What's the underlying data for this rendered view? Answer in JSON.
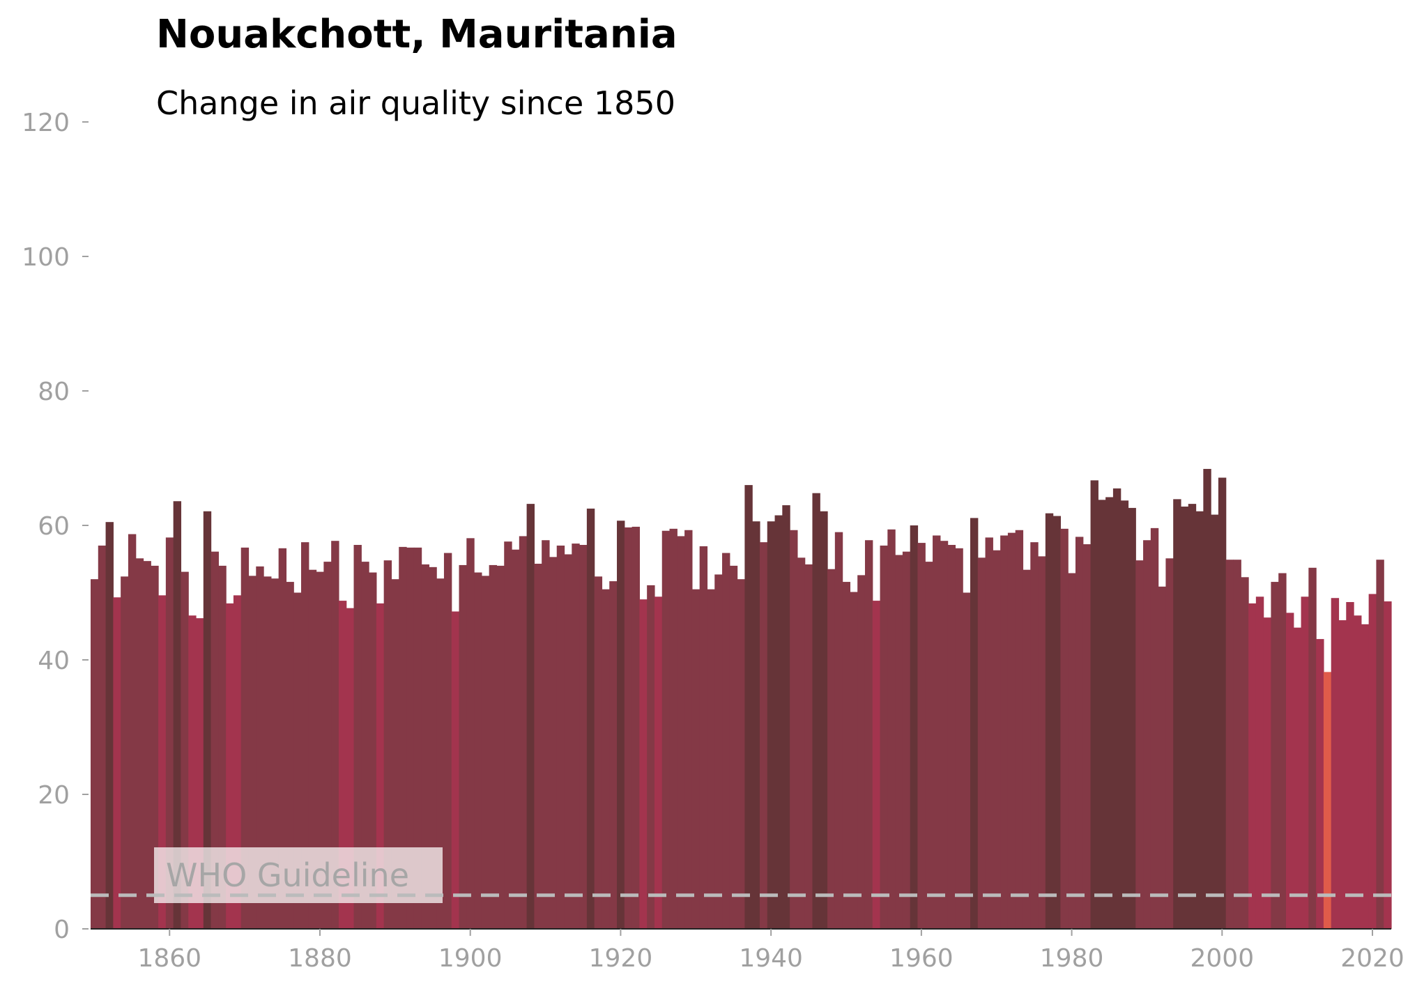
{
  "chart_data": {
    "type": "bar",
    "title": "Nouakchott, Mauritania",
    "subtitle": "Change in air quality since 1850",
    "xlabel": "",
    "ylabel": "",
    "x_start": 1850,
    "x_end": 2022,
    "xlim": [
      1850,
      2022
    ],
    "ylim": [
      0,
      120
    ],
    "x_ticks": [
      1860,
      1880,
      1900,
      1920,
      1940,
      1960,
      1980,
      2000,
      2020
    ],
    "y_ticks": [
      0,
      20,
      40,
      60,
      80,
      100,
      120
    ],
    "values": [
      52.0,
      57.0,
      60.5,
      49.3,
      52.4,
      58.7,
      55.1,
      54.7,
      54.0,
      49.6,
      58.2,
      63.6,
      53.1,
      46.6,
      46.2,
      62.1,
      56.1,
      54.0,
      48.4,
      49.6,
      56.7,
      52.5,
      53.9,
      52.4,
      52.1,
      56.6,
      51.6,
      50.0,
      57.5,
      53.4,
      53.1,
      54.6,
      57.7,
      48.8,
      47.7,
      57.1,
      54.6,
      53.0,
      48.4,
      54.8,
      52.0,
      56.8,
      56.7,
      56.7,
      54.2,
      53.8,
      52.1,
      55.9,
      47.2,
      54.1,
      58.1,
      53.0,
      52.5,
      54.1,
      54.0,
      57.6,
      56.4,
      58.4,
      63.2,
      54.3,
      57.8,
      55.3,
      57.0,
      55.7,
      57.3,
      57.1,
      62.5,
      52.4,
      50.5,
      51.7,
      60.7,
      59.7,
      59.8,
      49.0,
      51.1,
      49.4,
      59.2,
      59.5,
      58.4,
      59.3,
      50.5,
      56.9,
      50.5,
      52.7,
      55.9,
      54.0,
      52.0,
      66.0,
      60.6,
      57.5,
      60.6,
      61.5,
      63.0,
      59.3,
      55.2,
      54.2,
      64.8,
      62.1,
      53.5,
      59.0,
      51.6,
      50.1,
      52.6,
      57.8,
      48.8,
      57.0,
      59.4,
      55.6,
      56.1,
      60.0,
      57.4,
      54.6,
      58.5,
      57.7,
      57.1,
      56.6,
      50.0,
      61.1,
      55.2,
      58.2,
      56.3,
      58.5,
      58.9,
      59.3,
      53.4,
      57.5,
      55.4,
      61.8,
      61.4,
      59.5,
      52.9,
      58.3,
      57.2,
      66.7,
      63.8,
      64.2,
      65.5,
      63.7,
      62.6,
      54.8,
      57.8,
      59.6,
      50.9,
      55.1,
      63.9,
      62.8,
      63.2,
      62.1,
      68.4,
      61.6,
      67.1,
      54.9,
      54.9,
      52.3,
      48.4,
      49.4,
      46.3,
      51.6,
      52.9,
      47.0,
      44.8,
      49.4,
      53.7,
      43.1,
      38.2,
      49.2,
      45.9,
      48.6,
      46.6,
      45.3,
      49.8,
      54.9,
      48.7
    ],
    "color_scale": {
      "low": "#e05b4a",
      "mid_low": "#a3344e",
      "mid": "#843946",
      "high": "#663438"
    },
    "reference_line": {
      "label": "WHO Guideline",
      "value": 5,
      "color": "#bbbbbb",
      "style": "dashed"
    },
    "grid": false,
    "legend": "none"
  }
}
